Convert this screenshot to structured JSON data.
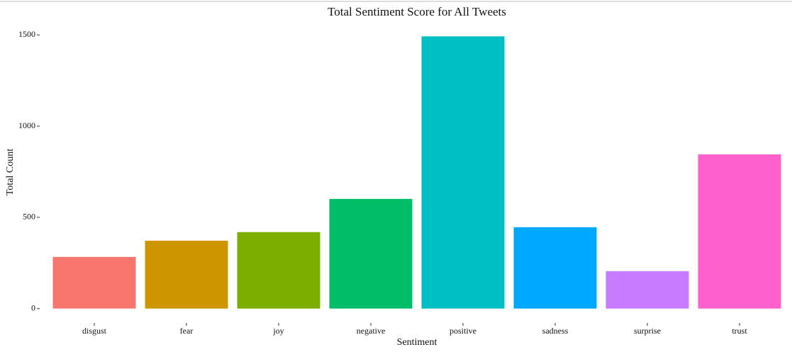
{
  "chart_data": {
    "type": "bar",
    "title": "Total Sentiment Score for All Tweets",
    "x_label": "Sentiment",
    "y_label": "Total Count",
    "categories": [
      "disgust",
      "fear",
      "joy",
      "negative",
      "positive",
      "sadness",
      "surprise",
      "trust"
    ],
    "values": [
      283,
      372,
      419,
      601,
      1492,
      446,
      205,
      845
    ],
    "colors": [
      "#f8766d",
      "#cd9600",
      "#7cae00",
      "#00be67",
      "#00bfc4",
      "#00a9ff",
      "#c77cff",
      "#ff61cc"
    ],
    "ylim": [
      -75,
      1567
    ],
    "yticks": [
      0,
      500,
      1000,
      1500
    ],
    "grid": false
  }
}
